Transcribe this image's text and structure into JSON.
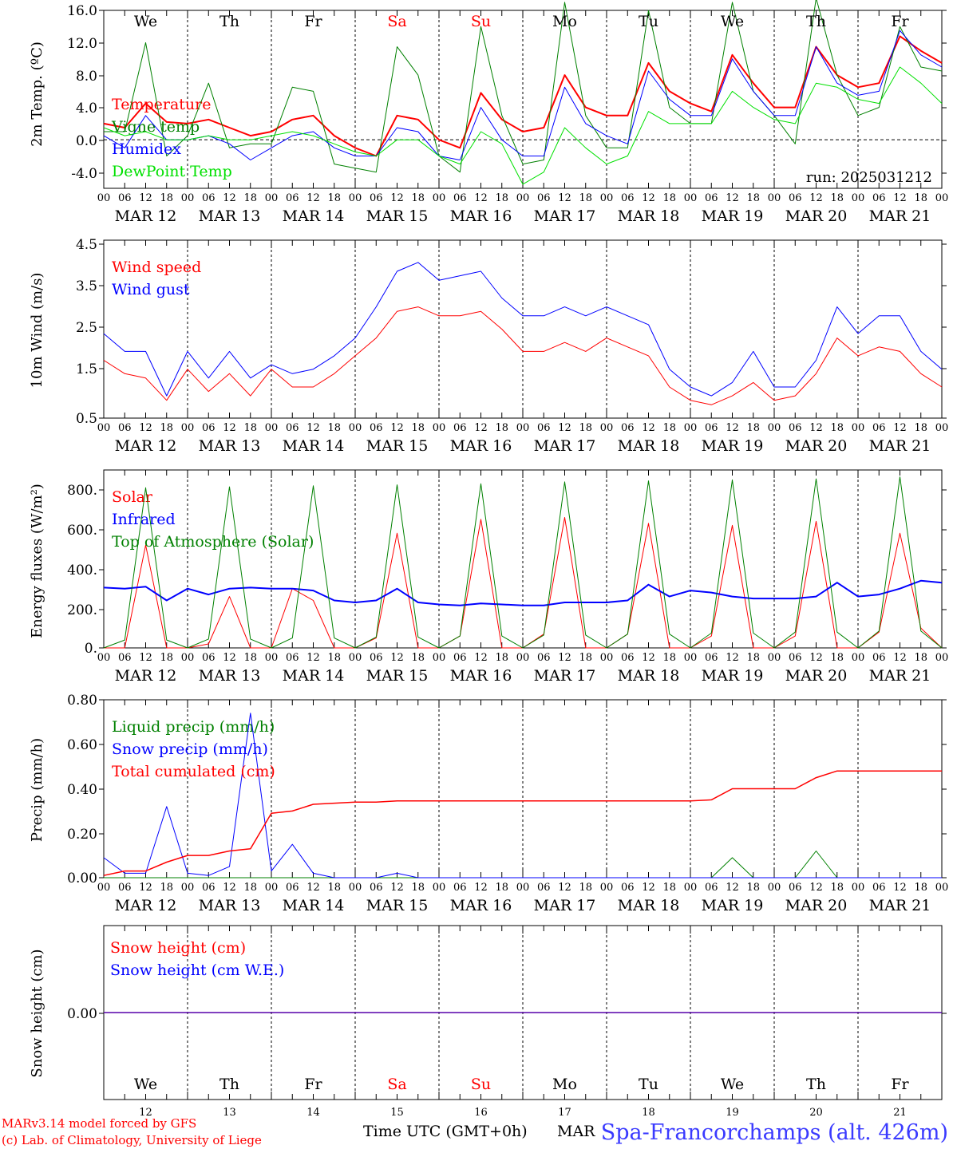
{
  "colors": {
    "red": "#ff0000",
    "green": "#008000",
    "blue": "#0000ff",
    "lightgreen": "#00e000",
    "darkgreen": "#006400",
    "black": "#000000",
    "station": "#3a3aff"
  },
  "time_axis": {
    "hour_ticks": [
      "00",
      "06",
      "12",
      "18",
      "00",
      "06",
      "12",
      "18",
      "00",
      "06",
      "12",
      "18",
      "00",
      "06",
      "12",
      "18",
      "00",
      "06",
      "12",
      "18",
      "00",
      "06",
      "12",
      "18",
      "00",
      "06",
      "12",
      "18",
      "00",
      "06",
      "12",
      "18",
      "00",
      "06",
      "12",
      "18",
      "00",
      "06",
      "12",
      "18",
      "00"
    ],
    "dates": [
      "MAR 12",
      "MAR 13",
      "MAR 14",
      "MAR 15",
      "MAR 16",
      "MAR 17",
      "MAR 18",
      "MAR 19",
      "MAR 20",
      "MAR 21"
    ],
    "weekdays": [
      "We",
      "Th",
      "Fr",
      "Sa",
      "Su",
      "Mo",
      "Tu",
      "We",
      "Th",
      "Fr"
    ],
    "weekday_colors": [
      "#000000",
      "#000000",
      "#000000",
      "#ff0000",
      "#ff0000",
      "#000000",
      "#000000",
      "#000000",
      "#000000",
      "#000000"
    ],
    "day_numbers": [
      "12",
      "13",
      "14",
      "15",
      "16",
      "17",
      "18",
      "19",
      "20",
      "21"
    ]
  },
  "chart_data": [
    {
      "type": "line",
      "ylabel": "2m Temp. (ºC)",
      "ylim": [
        -6,
        16
      ],
      "yticks": [
        "16.0",
        "12.0",
        "8.0",
        "4.0",
        "0.0",
        "-4.0"
      ],
      "zero_line": true,
      "annotation": "run: 2025031212",
      "x_hours": [
        0,
        6,
        12,
        18,
        24,
        30,
        36,
        42,
        48,
        54,
        60,
        66,
        72,
        78,
        84,
        90,
        96,
        102,
        108,
        114,
        120,
        126,
        132,
        138,
        144,
        150,
        156,
        162,
        168,
        174,
        180,
        186,
        192,
        198,
        204,
        210,
        216,
        222,
        228,
        234,
        240
      ],
      "series": [
        {
          "name": "Temperature",
          "color": "#ff0000",
          "width": 2,
          "values": [
            2.0,
            1.5,
            4.5,
            2.2,
            2.0,
            2.5,
            1.5,
            0.5,
            1.0,
            2.5,
            3.0,
            0.5,
            -1.0,
            -2.0,
            3.0,
            2.5,
            0.0,
            -1.0,
            5.8,
            2.5,
            1.0,
            1.5,
            8.0,
            4.0,
            3.0,
            3.0,
            9.5,
            6.0,
            4.5,
            3.5,
            10.5,
            7.0,
            4.0,
            4.0,
            11.5,
            8.0,
            6.5,
            7.0,
            12.8,
            11.0,
            9.5
          ]
        },
        {
          "name": "Vigne temp",
          "color": "#008000",
          "width": 1,
          "values": [
            1.0,
            1.0,
            12.0,
            -2.0,
            0.5,
            7.0,
            -1.0,
            -0.5,
            -0.5,
            6.5,
            6.0,
            -3.0,
            -3.5,
            -4.0,
            11.5,
            8.0,
            -2.0,
            -4.0,
            14.0,
            3.0,
            -3.0,
            -2.5,
            17.0,
            3.0,
            -1.0,
            -1.0,
            16.0,
            4.0,
            2.0,
            2.0,
            17.0,
            6.0,
            3.0,
            -0.5,
            17.5,
            8.0,
            3.0,
            4.0,
            14.0,
            9.0,
            8.5
          ]
        },
        {
          "name": "Humidex",
          "color": "#0000ff",
          "width": 1,
          "values": [
            0.5,
            -1.0,
            3.0,
            0.0,
            0.0,
            0.5,
            -0.5,
            -2.5,
            -1.0,
            0.5,
            1.0,
            -1.0,
            -2.0,
            -2.0,
            1.5,
            1.0,
            -2.0,
            -2.5,
            4.0,
            0.0,
            -2.0,
            -2.0,
            6.5,
            2.0,
            0.5,
            -0.5,
            8.5,
            5.0,
            3.0,
            3.0,
            10.0,
            6.0,
            3.0,
            3.0,
            11.5,
            7.0,
            5.5,
            6.0,
            13.5,
            10.5,
            9.0
          ]
        },
        {
          "name": "DewPoint Temp",
          "color": "#00e000",
          "width": 1,
          "values": [
            1.5,
            0.5,
            1.0,
            0.0,
            0.0,
            0.5,
            0.0,
            0.0,
            0.5,
            1.0,
            0.5,
            -0.5,
            -1.5,
            -2.0,
            0.0,
            0.0,
            -2.0,
            -3.0,
            1.0,
            -0.5,
            -5.5,
            -4.0,
            1.5,
            -1.0,
            -3.0,
            -2.0,
            3.5,
            2.0,
            2.0,
            2.0,
            6.0,
            4.0,
            2.5,
            2.0,
            7.0,
            6.5,
            5.0,
            4.5,
            9.0,
            7.0,
            4.5
          ]
        }
      ]
    },
    {
      "type": "line",
      "ylabel": "10m Wind (m/s)",
      "ylim": [
        0.5,
        4.5
      ],
      "yticks": [
        "4.5",
        "3.5",
        "2.5",
        "1.5",
        "0.5"
      ],
      "x_hours": [
        0,
        6,
        12,
        18,
        24,
        30,
        36,
        42,
        48,
        54,
        60,
        66,
        72,
        78,
        84,
        90,
        96,
        102,
        108,
        114,
        120,
        126,
        132,
        138,
        144,
        150,
        156,
        162,
        168,
        174,
        180,
        186,
        192,
        198,
        204,
        210,
        216,
        222,
        228,
        234,
        240
      ],
      "series": [
        {
          "name": "Wind speed",
          "color": "#ff0000",
          "width": 1,
          "values": [
            1.8,
            1.5,
            1.4,
            0.9,
            1.6,
            1.1,
            1.5,
            1.0,
            1.6,
            1.2,
            1.2,
            1.5,
            1.9,
            2.3,
            2.9,
            3.0,
            2.8,
            2.8,
            2.9,
            2.5,
            2.0,
            2.0,
            2.2,
            2.0,
            2.3,
            2.1,
            1.9,
            1.2,
            0.9,
            0.8,
            1.0,
            1.3,
            0.9,
            1.0,
            1.5,
            2.3,
            1.9,
            2.1,
            2.0,
            1.5,
            1.2
          ]
        },
        {
          "name": "Wind gust",
          "color": "#0000ff",
          "width": 1,
          "values": [
            2.4,
            2.0,
            2.0,
            1.0,
            2.0,
            1.4,
            2.0,
            1.4,
            1.7,
            1.5,
            1.6,
            1.9,
            2.3,
            3.0,
            3.8,
            4.0,
            3.6,
            3.7,
            3.8,
            3.2,
            2.8,
            2.8,
            3.0,
            2.8,
            3.0,
            2.8,
            2.6,
            1.6,
            1.2,
            1.0,
            1.3,
            2.0,
            1.2,
            1.2,
            1.8,
            3.0,
            2.4,
            2.8,
            2.8,
            2.0,
            1.6
          ]
        }
      ]
    },
    {
      "type": "line",
      "ylabel": "Energy fluxes (W/m²)",
      "ylim": [
        0,
        900
      ],
      "yticks": [
        "800.",
        "600.",
        "400.",
        "200.",
        "0."
      ],
      "x_hours": [
        0,
        6,
        12,
        18,
        24,
        30,
        36,
        42,
        48,
        54,
        60,
        66,
        72,
        78,
        84,
        90,
        96,
        102,
        108,
        114,
        120,
        126,
        132,
        138,
        144,
        150,
        156,
        162,
        168,
        174,
        180,
        186,
        192,
        198,
        204,
        210,
        216,
        222,
        228,
        234,
        240
      ],
      "series": [
        {
          "name": "Solar",
          "color": "#ff0000",
          "width": 1,
          "values": [
            0,
            0,
            520,
            0,
            0,
            20,
            260,
            0,
            0,
            300,
            240,
            0,
            0,
            50,
            580,
            0,
            0,
            60,
            650,
            0,
            0,
            70,
            660,
            0,
            0,
            70,
            630,
            0,
            0,
            60,
            620,
            0,
            0,
            60,
            640,
            0,
            0,
            80,
            580,
            100,
            0
          ]
        },
        {
          "name": "Infrared",
          "color": "#0000ff",
          "width": 2,
          "values": [
            305,
            300,
            310,
            240,
            300,
            270,
            300,
            305,
            300,
            300,
            290,
            240,
            230,
            240,
            300,
            230,
            220,
            215,
            225,
            220,
            215,
            215,
            230,
            230,
            230,
            240,
            320,
            260,
            290,
            280,
            260,
            250,
            250,
            250,
            260,
            330,
            260,
            270,
            300,
            340,
            330
          ]
        },
        {
          "name": "Top of Atmosphere (Solar)",
          "color": "#008000",
          "width": 1,
          "values": [
            0,
            40,
            810,
            40,
            0,
            45,
            815,
            45,
            0,
            50,
            820,
            50,
            0,
            55,
            825,
            55,
            0,
            60,
            830,
            60,
            0,
            65,
            840,
            65,
            0,
            70,
            845,
            70,
            0,
            75,
            850,
            75,
            0,
            80,
            855,
            80,
            0,
            85,
            865,
            85,
            0
          ]
        }
      ]
    },
    {
      "type": "line",
      "ylabel": "Precip (mm/h)",
      "ylim": [
        0,
        0.8
      ],
      "yticks": [
        "0.80",
        "0.60",
        "0.40",
        "0.20",
        "0.00"
      ],
      "x_hours": [
        0,
        6,
        12,
        18,
        24,
        30,
        36,
        42,
        48,
        54,
        60,
        66,
        72,
        78,
        84,
        90,
        96,
        102,
        108,
        114,
        120,
        126,
        132,
        138,
        144,
        150,
        156,
        162,
        168,
        174,
        180,
        186,
        192,
        198,
        204,
        210,
        216,
        222,
        228,
        234,
        240
      ],
      "series": [
        {
          "name": "Liquid precip (mm/h)",
          "color": "#008000",
          "width": 1,
          "values": [
            0,
            0,
            0,
            0,
            0,
            0,
            0,
            0,
            0,
            0,
            0,
            0,
            0,
            0,
            0,
            0,
            0,
            0,
            0,
            0,
            0,
            0,
            0,
            0,
            0,
            0,
            0,
            0,
            0,
            0,
            0.09,
            0,
            0,
            0,
            0.12,
            0,
            0,
            0,
            0,
            0,
            0
          ]
        },
        {
          "name": "Snow precip (mm/h)",
          "color": "#0000ff",
          "width": 1,
          "values": [
            0.09,
            0.02,
            0.02,
            0.32,
            0.02,
            0.01,
            0.05,
            0.74,
            0.03,
            0.15,
            0.02,
            0,
            0,
            0,
            0.02,
            0,
            0,
            0,
            0,
            0,
            0,
            0,
            0,
            0,
            0,
            0,
            0,
            0,
            0,
            0,
            0,
            0,
            0,
            0,
            0,
            0,
            0,
            0,
            0,
            0,
            0
          ]
        },
        {
          "name": "Total cumulated (cm)",
          "color": "#ff0000",
          "width": 1.5,
          "values": [
            0.01,
            0.03,
            0.03,
            0.07,
            0.1,
            0.1,
            0.12,
            0.13,
            0.29,
            0.3,
            0.33,
            0.335,
            0.34,
            0.34,
            0.345,
            0.345,
            0.345,
            0.345,
            0.345,
            0.345,
            0.345,
            0.345,
            0.345,
            0.345,
            0.345,
            0.345,
            0.345,
            0.345,
            0.345,
            0.35,
            0.4,
            0.4,
            0.4,
            0.4,
            0.45,
            0.48,
            0.48,
            0.48,
            0.48,
            0.48,
            0.48
          ]
        }
      ]
    },
    {
      "type": "line",
      "ylabel": "Snow height (cm)",
      "ylim": [
        -1,
        1
      ],
      "yticks": [
        "0.00"
      ],
      "x_hours": [
        0,
        240
      ],
      "series": [
        {
          "name": "Snow height (cm)",
          "color": "#ff0000",
          "width": 1.5,
          "values": [
            0,
            0
          ]
        },
        {
          "name": "Snow height (cm W.E.)",
          "color": "#0000ff",
          "width": 1,
          "values": [
            0,
            0
          ]
        }
      ]
    }
  ],
  "footer": {
    "credit_line1": "MARv3.14 model forced by GFS",
    "credit_line2": "(c) Lab. of Climatology, University of Liege",
    "xlabel": "Time UTC (GMT+0h)",
    "month_label": "MAR",
    "station": "Spa-Francorchamps (alt. 426m)"
  }
}
